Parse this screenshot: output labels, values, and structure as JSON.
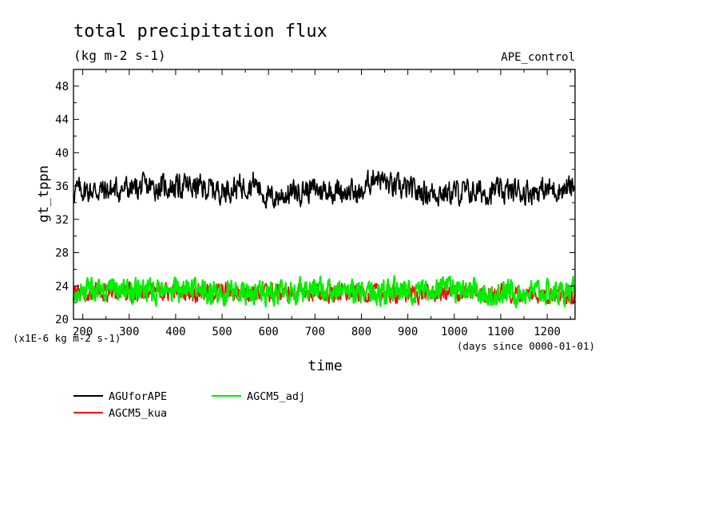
{
  "chart_data": {
    "type": "line",
    "title": "total precipitation flux",
    "units": "(kg m-2 s-1)",
    "experiment": "APE_control",
    "xlabel": "time",
    "x_units": "(days since 0000-01-01)",
    "ylabel": "gt_tppn",
    "y_scale": "(x1E-6 kg m-2 s-1)",
    "xlim": [
      180,
      1260
    ],
    "ylim": [
      20,
      50
    ],
    "xticks": [
      200,
      300,
      400,
      500,
      600,
      700,
      800,
      900,
      1000,
      1100,
      1200
    ],
    "yticks": [
      20,
      24,
      28,
      32,
      36,
      40,
      44,
      48
    ],
    "grid": false,
    "legend_position": "bottom-left",
    "series": [
      {
        "name": "AGUforAPE",
        "color": "#000000",
        "anchors": [
          [
            180,
            35.5
          ],
          [
            260,
            35.5
          ],
          [
            330,
            35.8
          ],
          [
            420,
            36.0
          ],
          [
            500,
            35.5
          ],
          [
            570,
            36.4
          ],
          [
            600,
            34.5
          ],
          [
            680,
            35.6
          ],
          [
            760,
            35.5
          ],
          [
            800,
            35.0
          ],
          [
            830,
            37.5
          ],
          [
            860,
            36.0
          ],
          [
            920,
            35.3
          ],
          [
            1000,
            35.2
          ],
          [
            1100,
            35.3
          ],
          [
            1200,
            35.5
          ],
          [
            1260,
            35.8
          ]
        ],
        "amplitude": 1.6,
        "lw": 1.6
      },
      {
        "name": "AGCM5_kua",
        "color": "#ff0000",
        "anchors": [
          [
            180,
            23.2
          ],
          [
            400,
            23.3
          ],
          [
            600,
            23.2
          ],
          [
            800,
            23.1
          ],
          [
            1000,
            23.1
          ],
          [
            1260,
            23.0
          ]
        ],
        "amplitude": 1.2,
        "lw": 1.6
      },
      {
        "name": "AGCM5_adj",
        "color": "#00ee00",
        "anchors": [
          [
            180,
            23.3
          ],
          [
            400,
            23.4
          ],
          [
            600,
            23.3
          ],
          [
            800,
            23.3
          ],
          [
            1000,
            23.3
          ],
          [
            1260,
            23.2
          ]
        ],
        "amplitude": 1.6,
        "lw": 2.2
      }
    ]
  }
}
